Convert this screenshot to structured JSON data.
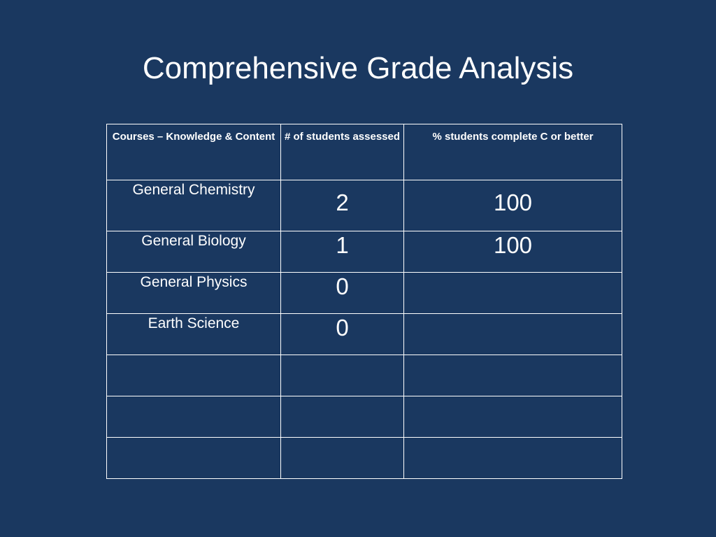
{
  "slide": {
    "title": "Comprehensive Grade Analysis"
  },
  "table": {
    "headers": [
      "Courses – Knowledge & Content",
      "# of students assessed",
      "% students complete C or better"
    ],
    "rows": [
      {
        "course": "General Chemistry",
        "students": "2",
        "percent": "100"
      },
      {
        "course": "General Biology",
        "students": "1",
        "percent": "100"
      },
      {
        "course": "General Physics",
        "students": "0",
        "percent": ""
      },
      {
        "course": "Earth Science",
        "students": "0",
        "percent": ""
      },
      {
        "course": "",
        "students": "",
        "percent": ""
      },
      {
        "course": "",
        "students": "",
        "percent": ""
      },
      {
        "course": "",
        "students": "",
        "percent": ""
      }
    ]
  },
  "colors": {
    "background": "#1a3860",
    "text": "#ffffff",
    "grid": "#ffffff"
  }
}
